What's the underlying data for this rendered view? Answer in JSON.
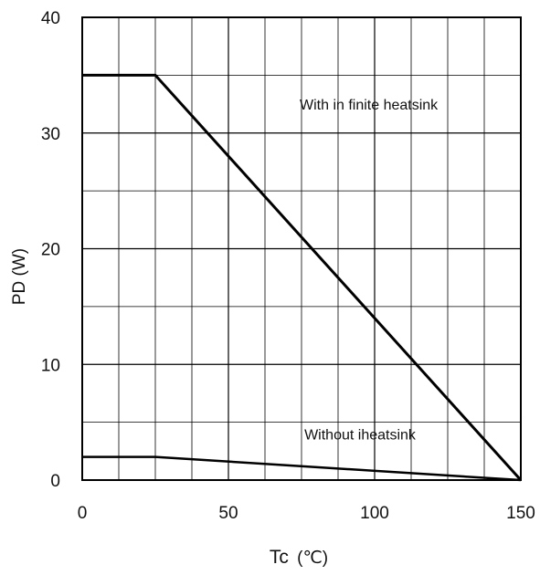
{
  "chart_data": {
    "type": "line",
    "xlabel_main": "Tc",
    "xlabel_unit": "(℃)",
    "ylabel": "PD (W)",
    "xlim": [
      0,
      150
    ],
    "ylim": [
      0,
      40
    ],
    "x_ticks": [
      0,
      50,
      100,
      150
    ],
    "y_ticks": [
      0,
      10,
      20,
      30,
      40
    ],
    "x_tick_labels": [
      "0",
      "50",
      "100",
      "150"
    ],
    "y_tick_labels": [
      "0",
      "10",
      "20",
      "30",
      "40"
    ],
    "grid": true,
    "grid_x_step": 12.5,
    "grid_y_step": 5,
    "series": [
      {
        "label": "With in finite heatsink",
        "x": [
          0,
          25,
          150
        ],
        "y": [
          35,
          35,
          0
        ]
      },
      {
        "label": "Without iheatsink",
        "x": [
          0,
          25,
          150
        ],
        "y": [
          2,
          2,
          0
        ]
      }
    ],
    "annotations": [
      {
        "text": "With in finite heatsink",
        "x": 98,
        "y": 32.5
      },
      {
        "text": "Without iheatsink",
        "x": 95,
        "y": 4
      }
    ],
    "colors": {
      "line": "#000000",
      "grid": "#000000"
    }
  }
}
